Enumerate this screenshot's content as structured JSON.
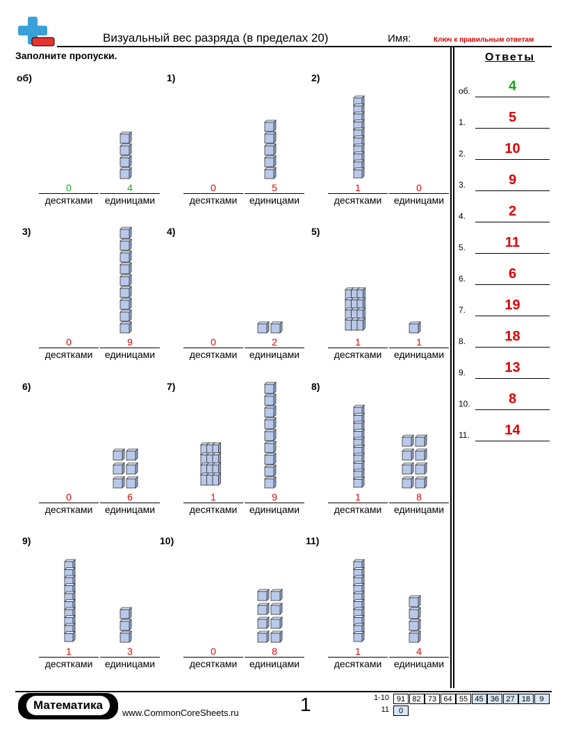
{
  "header": {
    "title": "Визуальный вес разряда (в пределах 20)",
    "name_label": "Имя:",
    "key_label": "Ключ к правильным ответам"
  },
  "instructions": "Заполните пропуски.",
  "caption_tens": "десятками",
  "caption_ones": "единицами",
  "problems": [
    {
      "label": "об)",
      "tens": "0",
      "ones": "4",
      "example": true
    },
    {
      "label": "1)",
      "tens": "0",
      "ones": "5"
    },
    {
      "label": "2)",
      "tens": "1",
      "ones": "0"
    },
    {
      "label": "3)",
      "tens": "0",
      "ones": "9"
    },
    {
      "label": "4)",
      "tens": "0",
      "ones": "2"
    },
    {
      "label": "5)",
      "tens": "1",
      "ones": "1"
    },
    {
      "label": "6)",
      "tens": "0",
      "ones": "6"
    },
    {
      "label": "7)",
      "tens": "1",
      "ones": "9"
    },
    {
      "label": "8)",
      "tens": "1",
      "ones": "8"
    },
    {
      "label": "9)",
      "tens": "1",
      "ones": "3"
    },
    {
      "label": "10)",
      "tens": "0",
      "ones": "8"
    },
    {
      "label": "11)",
      "tens": "1",
      "ones": "4"
    }
  ],
  "answers": {
    "title": "Ответы",
    "items": [
      {
        "label": "об.",
        "value": "4",
        "example": true
      },
      {
        "label": "1.",
        "value": "5"
      },
      {
        "label": "2.",
        "value": "10"
      },
      {
        "label": "3.",
        "value": "9"
      },
      {
        "label": "4.",
        "value": "2"
      },
      {
        "label": "5.",
        "value": "11"
      },
      {
        "label": "6.",
        "value": "6"
      },
      {
        "label": "7.",
        "value": "19"
      },
      {
        "label": "8.",
        "value": "18"
      },
      {
        "label": "9.",
        "value": "13"
      },
      {
        "label": "10.",
        "value": "8"
      },
      {
        "label": "11.",
        "value": "14"
      }
    ]
  },
  "footer": {
    "brand": "Математика",
    "url": "www.CommonCoreSheets.ru",
    "page": "1",
    "score_rows": [
      {
        "label": "1-10",
        "cells": [
          "91",
          "82",
          "73",
          "64",
          "55",
          "45",
          "36",
          "27",
          "18",
          "9"
        ]
      },
      {
        "label": "11",
        "cells": [
          "0"
        ]
      }
    ]
  },
  "colors": {
    "answer": "#e00000",
    "example": "#1aa51a",
    "block_fill": "#b9c9ea",
    "block_stroke": "#333333"
  }
}
